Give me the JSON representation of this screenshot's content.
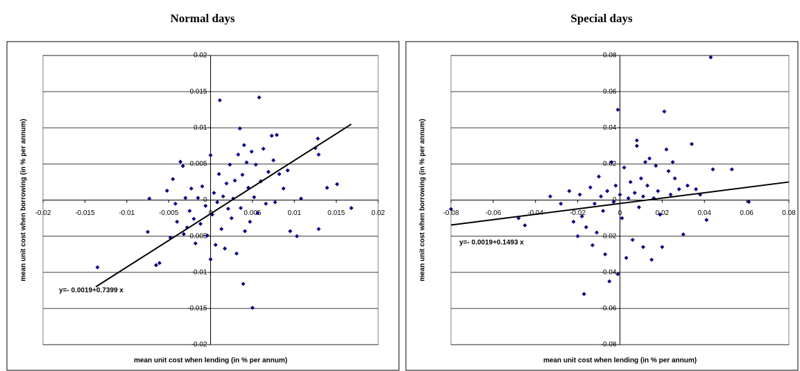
{
  "chart_data": [
    {
      "type": "scatter",
      "title": "Normal days",
      "x_label": "mean unit cost when lending (in % per annum)",
      "y_label": "mean unit cost when borrowing (in % per annum)",
      "annotation": "y=- 0.0019+0.7399 x",
      "color": "#000080",
      "grid": true,
      "xlim": [
        -0.02,
        0.02
      ],
      "ylim": [
        -0.02,
        0.02
      ],
      "xticks": [
        -0.02,
        -0.015,
        -0.01,
        -0.005,
        0,
        0.005,
        0.01,
        0.015,
        0.02
      ],
      "yticks": [
        0.02,
        0.015,
        0.01,
        0.005,
        0,
        -0.005,
        -0.01,
        -0.015,
        -0.02
      ],
      "x": [
        -0.0135,
        -0.0075,
        -0.0073,
        -0.0065,
        -0.0061,
        -0.0052,
        -0.0048,
        -0.0045,
        -0.0042,
        -0.004,
        -0.0036,
        -0.0033,
        -0.0032,
        -0.003,
        -0.0028,
        -0.0025,
        -0.0023,
        -0.002,
        -0.0018,
        -0.0015,
        -0.0012,
        -0.001,
        -0.0006,
        -0.0004,
        0,
        0,
        0.0002,
        0.0004,
        0.0006,
        0.0008,
        0.001,
        0.0011,
        0.0013,
        0.0015,
        0.0017,
        0.0019,
        0.0021,
        0.0023,
        0.0025,
        0.0027,
        0.0029,
        0.0031,
        0.0033,
        0.0035,
        0.0036,
        0.0038,
        0.004,
        0.0041,
        0.0039,
        0.0043,
        0.0045,
        0.0047,
        0.0049,
        0.005,
        0.0052,
        0.0054,
        0.0056,
        0.0058,
        0.006,
        0.0063,
        0.0066,
        0.0069,
        0.0073,
        0.0075,
        0.0077,
        0.0079,
        0.0082,
        0.0087,
        0.0092,
        0.0095,
        0.0103,
        0.0108,
        0.0125,
        0.0128,
        0.0129,
        0.0129,
        0.0139,
        0.0151,
        0.0168
      ],
      "values": [
        -0.0093,
        -0.0044,
        0.0002,
        -0.009,
        -0.0087,
        0.0013,
        -0.0052,
        0.0029,
        -0.0005,
        -0.003,
        0.0053,
        0.0047,
        -0.0047,
        0.0003,
        -0.0038,
        -0.0015,
        0.0016,
        -0.0026,
        -0.006,
        0.0003,
        -0.0033,
        0.0019,
        -0.0008,
        -0.0049,
        0.0062,
        -0.0082,
        -0.002,
        0.001,
        -0.0062,
        -0.0003,
        0.0036,
        0.0138,
        -0.004,
        0.0005,
        -0.0067,
        0.0023,
        -0.0012,
        0.0049,
        -0.0025,
        0.0002,
        0.0027,
        -0.0074,
        0.0063,
        0.0099,
        -0.0011,
        0.0035,
        0.0076,
        -0.0043,
        -0.0116,
        0.0052,
        0.0017,
        -0.003,
        0.0067,
        -0.0149,
        0.0004,
        0.0049,
        -0.0018,
        0.0142,
        0.0026,
        0.0071,
        -0.0005,
        0.0039,
        0.0089,
        0.0055,
        -0.0003,
        0.009,
        0.0036,
        0.0016,
        0.0041,
        -0.0043,
        -0.005,
        0.0002,
        0.0072,
        0.0085,
        0.0063,
        -0.004,
        0.0017,
        0.0022,
        -0.0011
      ],
      "trendline": {
        "x": [
          -0.0137,
          0.0168
        ],
        "y": [
          -0.012,
          0.0105
        ]
      }
    },
    {
      "type": "scatter",
      "title": "Special days",
      "x_label": "mean unit cost when lending (in % per annum)",
      "y_label": "mean unit cost when borrowing (in % per annum)",
      "annotation": "y=- 0.0019+0.1493 x",
      "color": "#000080",
      "grid": true,
      "xlim": [
        -0.08,
        0.08
      ],
      "ylim": [
        -0.08,
        0.08
      ],
      "xticks": [
        -0.08,
        -0.06,
        -0.04,
        -0.02,
        0,
        0.02,
        0.04,
        0.06,
        0.08
      ],
      "yticks": [
        0.08,
        0.06,
        0.04,
        0.02,
        0,
        -0.02,
        -0.04,
        -0.06,
        -0.08
      ],
      "x": [
        -0.08,
        -0.048,
        -0.045,
        -0.033,
        -0.028,
        -0.024,
        -0.022,
        -0.02,
        -0.019,
        -0.018,
        -0.017,
        -0.016,
        -0.014,
        -0.013,
        -0.012,
        -0.011,
        -0.01,
        -0.009,
        -0.008,
        -0.007,
        -0.006,
        -0.005,
        -0.004,
        -0.003,
        -0.002,
        -0.001,
        -0.001,
        0,
        0.001,
        0.002,
        0.003,
        0.004,
        0.005,
        0.006,
        0.007,
        0.008,
        0.008,
        0.009,
        0.01,
        0.011,
        0.012,
        0.011,
        0.013,
        0.014,
        0.015,
        0.016,
        0.017,
        0.018,
        0.019,
        0.02,
        0.021,
        0.022,
        0.023,
        0.024,
        0.025,
        0.026,
        0.028,
        0.03,
        0.032,
        0.034,
        0.036,
        0.038,
        0.041,
        0.043,
        0.044,
        0.053,
        0.061
      ],
      "values": [
        -0.005,
        -0.01,
        -0.014,
        0.002,
        -0.002,
        0.005,
        -0.012,
        -0.02,
        0.003,
        -0.009,
        -0.052,
        -0.015,
        0.007,
        -0.025,
        -0.002,
        -0.018,
        0.013,
        0.002,
        -0.006,
        -0.03,
        0.005,
        -0.045,
        0.021,
        -0.001,
        0.008,
        0.05,
        -0.041,
        0.003,
        -0.01,
        0.018,
        -0.032,
        0.001,
        0.01,
        -0.022,
        0.004,
        0.03,
        0.033,
        -0.004,
        0.012,
        0.002,
        0.021,
        -0.026,
        0.008,
        0.023,
        -0.033,
        0.001,
        0.019,
        0.005,
        -0.008,
        -0.026,
        0.049,
        0.028,
        0.016,
        0.003,
        0.021,
        0.012,
        0.006,
        -0.019,
        0.008,
        0.031,
        0.006,
        0.003,
        -0.011,
        0.079,
        0.017,
        0.017,
        -0.001
      ],
      "trendline": {
        "x": [
          -0.08,
          0.08
        ],
        "y": [
          -0.0138,
          0.01
        ]
      }
    }
  ]
}
